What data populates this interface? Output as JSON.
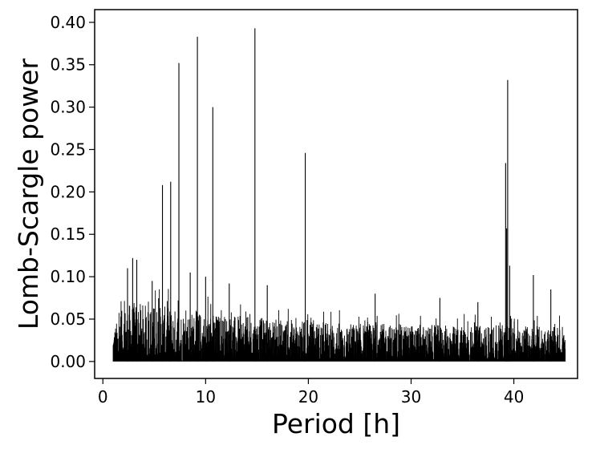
{
  "chart_data": {
    "type": "line",
    "title": "",
    "xlabel": "Period [h]",
    "ylabel": "Lomb-Scargle power",
    "xlim": [
      -0.8,
      46.2
    ],
    "ylim": [
      -0.02,
      0.415
    ],
    "xticks": [
      0,
      10,
      20,
      30,
      40
    ],
    "xtick_labels": [
      "0",
      "10",
      "20",
      "30",
      "40"
    ],
    "yticks": [
      0.0,
      0.05,
      0.1,
      0.15,
      0.2,
      0.25,
      0.3,
      0.35,
      0.4
    ],
    "ytick_labels": [
      "0.00",
      "0.05",
      "0.10",
      "0.15",
      "0.20",
      "0.25",
      "0.30",
      "0.35",
      "0.40"
    ],
    "grid": false,
    "line_color": "#000000",
    "noise_envelope": {
      "x": [
        1.0,
        1.5,
        2.0,
        3.0,
        4.0,
        6.0,
        8.0,
        10.0,
        12.0,
        15.0,
        20.0,
        25.0,
        30.0,
        35.0,
        40.0,
        45.0
      ],
      "y": [
        0.04,
        0.05,
        0.065,
        0.07,
        0.068,
        0.065,
        0.06,
        0.058,
        0.055,
        0.052,
        0.048,
        0.045,
        0.044,
        0.042,
        0.043,
        0.04
      ]
    },
    "peaks": [
      {
        "x": 14.8,
        "y": 0.393
      },
      {
        "x": 9.2,
        "y": 0.383
      },
      {
        "x": 7.4,
        "y": 0.352
      },
      {
        "x": 39.4,
        "y": 0.332
      },
      {
        "x": 10.7,
        "y": 0.3
      },
      {
        "x": 19.7,
        "y": 0.246
      },
      {
        "x": 39.2,
        "y": 0.234
      },
      {
        "x": 6.6,
        "y": 0.212
      },
      {
        "x": 5.8,
        "y": 0.208
      },
      {
        "x": 39.3,
        "y": 0.157
      },
      {
        "x": 2.9,
        "y": 0.122
      },
      {
        "x": 3.3,
        "y": 0.12
      },
      {
        "x": 2.4,
        "y": 0.11
      },
      {
        "x": 8.5,
        "y": 0.105
      },
      {
        "x": 39.6,
        "y": 0.113
      },
      {
        "x": 41.9,
        "y": 0.102
      },
      {
        "x": 10.0,
        "y": 0.1
      },
      {
        "x": 4.8,
        "y": 0.095
      },
      {
        "x": 12.3,
        "y": 0.092
      },
      {
        "x": 16.0,
        "y": 0.09
      },
      {
        "x": 43.6,
        "y": 0.085
      },
      {
        "x": 26.5,
        "y": 0.08
      },
      {
        "x": 32.8,
        "y": 0.075
      },
      {
        "x": 36.5,
        "y": 0.07
      }
    ]
  }
}
